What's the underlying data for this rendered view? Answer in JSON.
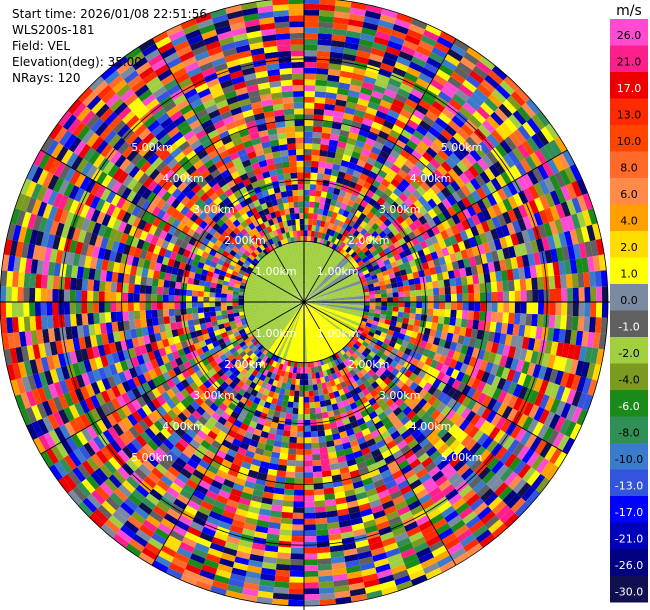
{
  "header": {
    "start_time": "Start time: 2026/01/08 22:51:56",
    "instrument": "WLS200s-181",
    "field": "Field: VEL",
    "elevation": "Elevation(deg): 35.00",
    "nrays": "NRays: 120"
  },
  "chart_data": {
    "type": "heatmap",
    "projection": "polar-ppi",
    "field": "VEL",
    "units": "m/s",
    "n_rays": 120,
    "elevation_deg": 35.0,
    "range_rings": [
      {
        "label": "1.00km"
      },
      {
        "label": "2.00km"
      },
      {
        "label": "3.00km"
      },
      {
        "label": "4.00km"
      },
      {
        "label": "5.00km"
      }
    ],
    "colorbar": {
      "label": "m/s",
      "ticks": [
        "26.0",
        "21.0",
        "17.0",
        "13.0",
        "10.0",
        "8.0",
        "6.0",
        "4.0",
        "2.0",
        "1.0",
        "0.0",
        "-1.0",
        "-2.0",
        "-4.0",
        "-6.0",
        "-8.0",
        "-10.0",
        "-13.0",
        "-17.0",
        "-21.0",
        "-26.0",
        "-30.0"
      ],
      "colors": [
        "#ff4ad2",
        "#ff1f8a",
        "#ee0000",
        "#ff2a00",
        "#ff4500",
        "#ff6a2a",
        "#ff8a4a",
        "#ffa000",
        "#ffdd00",
        "#ffff00",
        "#7a8aa0",
        "#606060",
        "#a0d040",
        "#7a9a20",
        "#1a8a1a",
        "#2f8f55",
        "#3a7bcc",
        "#3355dd",
        "#0000ff",
        "#0000bb",
        "#000080",
        "#101050"
      ]
    }
  }
}
